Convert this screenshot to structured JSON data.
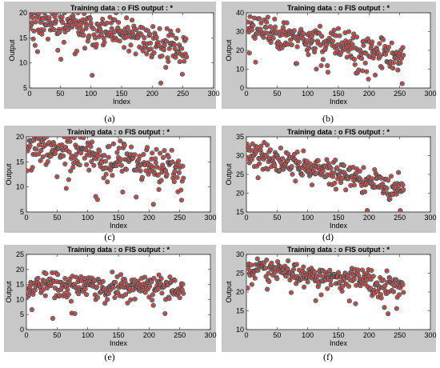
{
  "chart_data": [
    {
      "id": "a",
      "type": "scatter",
      "caption": "(a)",
      "title": "Training data : o    FIS output : *",
      "xlabel": "Index",
      "ylabel": "Output",
      "xlim": [
        0,
        300
      ],
      "ylim": [
        5,
        20
      ],
      "xticks": [
        0,
        50,
        100,
        150,
        200,
        250,
        300
      ],
      "yticks": [
        5,
        10,
        15,
        20
      ],
      "legend": "none",
      "grid": false,
      "y_start": 19.0,
      "y_end": 13.0,
      "spread": 3.0,
      "seed": 11,
      "series": [
        {
          "name": "Training data",
          "marker": "o"
        },
        {
          "name": "FIS output",
          "marker": "*"
        }
      ]
    },
    {
      "id": "b",
      "type": "scatter",
      "caption": "(b)",
      "title": "Training data : o    FIS output : *",
      "xlabel": "Index",
      "ylabel": "Output",
      "xlim": [
        0,
        300
      ],
      "ylim": [
        0,
        40
      ],
      "xticks": [
        0,
        50,
        100,
        150,
        200,
        250,
        300
      ],
      "yticks": [
        0,
        10,
        20,
        30,
        40
      ],
      "legend": "none",
      "grid": false,
      "y_start": 33.0,
      "y_end": 16.0,
      "spread": 7.0,
      "seed": 23,
      "series": [
        {
          "name": "Training data",
          "marker": "o"
        },
        {
          "name": "FIS output",
          "marker": "*"
        }
      ]
    },
    {
      "id": "c",
      "type": "scatter",
      "caption": "(c)",
      "title": "Training data : o    FIS output : *",
      "xlabel": "Index",
      "ylabel": "Output",
      "xlim": [
        0,
        300
      ],
      "ylim": [
        5,
        20
      ],
      "xticks": [
        0,
        50,
        100,
        150,
        200,
        250,
        300
      ],
      "yticks": [
        5,
        10,
        15,
        20
      ],
      "legend": "none",
      "grid": false,
      "y_start": 18.5,
      "y_end": 13.0,
      "spread": 3.0,
      "seed": 37,
      "series": [
        {
          "name": "Training data",
          "marker": "o"
        },
        {
          "name": "FIS output",
          "marker": "*"
        }
      ]
    },
    {
      "id": "d",
      "type": "scatter",
      "caption": "(d)",
      "title": "Training data : o    FIS output : *",
      "xlabel": "Index",
      "ylabel": "Output",
      "xlim": [
        0,
        300
      ],
      "ylim": [
        15,
        35
      ],
      "xticks": [
        0,
        50,
        100,
        150,
        200,
        250,
        300
      ],
      "yticks": [
        15,
        20,
        25,
        30,
        35
      ],
      "legend": "none",
      "grid": false,
      "y_start": 31.0,
      "y_end": 21.0,
      "spread": 3.0,
      "seed": 41,
      "series": [
        {
          "name": "Training data",
          "marker": "o"
        },
        {
          "name": "FIS output",
          "marker": "*"
        }
      ]
    },
    {
      "id": "e",
      "type": "scatter",
      "caption": "(e)",
      "title": "Training data : o    FIS output : *",
      "xlabel": "Index",
      "ylabel": "Output",
      "xlim": [
        0,
        300
      ],
      "ylim": [
        0,
        25
      ],
      "xticks": [
        0,
        50,
        100,
        150,
        200,
        250,
        300
      ],
      "yticks": [
        0,
        5,
        10,
        15,
        20,
        25
      ],
      "legend": "none",
      "grid": false,
      "y_start": 15.0,
      "y_end": 14.0,
      "spread": 3.5,
      "seed": 53,
      "series": [
        {
          "name": "Training data",
          "marker": "o"
        },
        {
          "name": "FIS output",
          "marker": "*"
        }
      ]
    },
    {
      "id": "f",
      "type": "scatter",
      "caption": "(f)",
      "title": "Training data : o    FIS output : *",
      "xlabel": "Index",
      "ylabel": "Output",
      "xlim": [
        0,
        300
      ],
      "ylim": [
        10,
        30
      ],
      "xticks": [
        0,
        50,
        100,
        150,
        200,
        250,
        300
      ],
      "yticks": [
        10,
        15,
        20,
        25,
        30
      ],
      "legend": "none",
      "grid": false,
      "y_start": 27.0,
      "y_end": 21.5,
      "spread": 2.5,
      "seed": 67,
      "series": [
        {
          "name": "Training data",
          "marker": "o"
        },
        {
          "name": "FIS output",
          "marker": "*"
        }
      ]
    }
  ],
  "colors": {
    "training_marker": "#8c8c8c",
    "fis_marker": "#ff1a1a",
    "panel_background": "#c8c8c8"
  }
}
